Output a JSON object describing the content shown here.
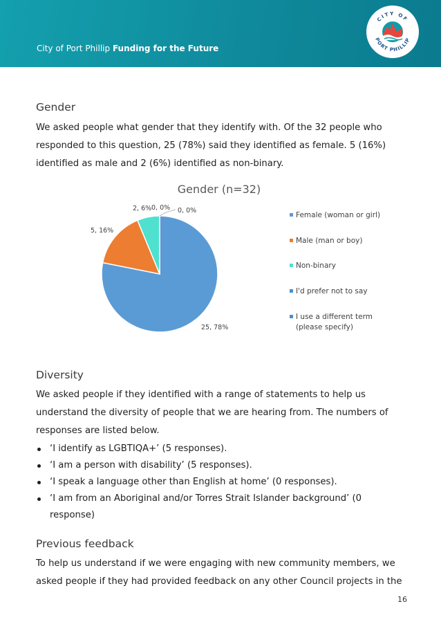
{
  "header": {
    "org": "City of Port Phillip",
    "title": "Funding for the Future",
    "logo_text_top": "CITY OF",
    "logo_text_bottom": "PORT PHILLIP",
    "color": "#119aab"
  },
  "gender": {
    "heading": "Gender",
    "paragraph": "We asked people what gender that they identify with. Of the 32 people who responded to this question, 25 (78%) said they identified as female. 5 (16%) identified as male and 2 (6%) identified as non-binary."
  },
  "chart_data": {
    "type": "pie",
    "title": "Gender (n=32)",
    "legend_position": "right",
    "slices": [
      {
        "name": "Female (woman or girl)",
        "value": 25,
        "label": "25, 78%",
        "color": "#5b9bd5"
      },
      {
        "name": "Male (man or boy)",
        "value": 5,
        "label": "5, 16%",
        "color": "#ed7d31"
      },
      {
        "name": "Non-binary",
        "value": 2,
        "label": "2, 6%",
        "color": "#4fe0d0"
      },
      {
        "name": "I'd prefer not to say",
        "value": 0,
        "label": "0, 0%",
        "color": "#4a8fd0"
      },
      {
        "name": "I use a different term (please specify)",
        "value": 0,
        "label": "0, 0%",
        "color": "#4a8fd0"
      }
    ]
  },
  "diversity": {
    "heading": "Diversity",
    "paragraph": "We asked people if they identified with a range of statements to help us understand the diversity of people that we are hearing from. The numbers of responses are listed below.",
    "bullets": [
      "‘I identify as LGBTIQA+’ (5 responses).",
      "‘I am a person with disability’ (5 responses).",
      "‘I speak a language other than English at home’ (0 responses).",
      "‘I am from an Aboriginal and/or Torres Strait Islander background’ (0 response)"
    ]
  },
  "previous": {
    "heading": "Previous feedback",
    "paragraph": "To help us understand if we were engaging with new community members, we asked people if they had provided feedback on any other Council projects in the"
  },
  "page_number": "16"
}
